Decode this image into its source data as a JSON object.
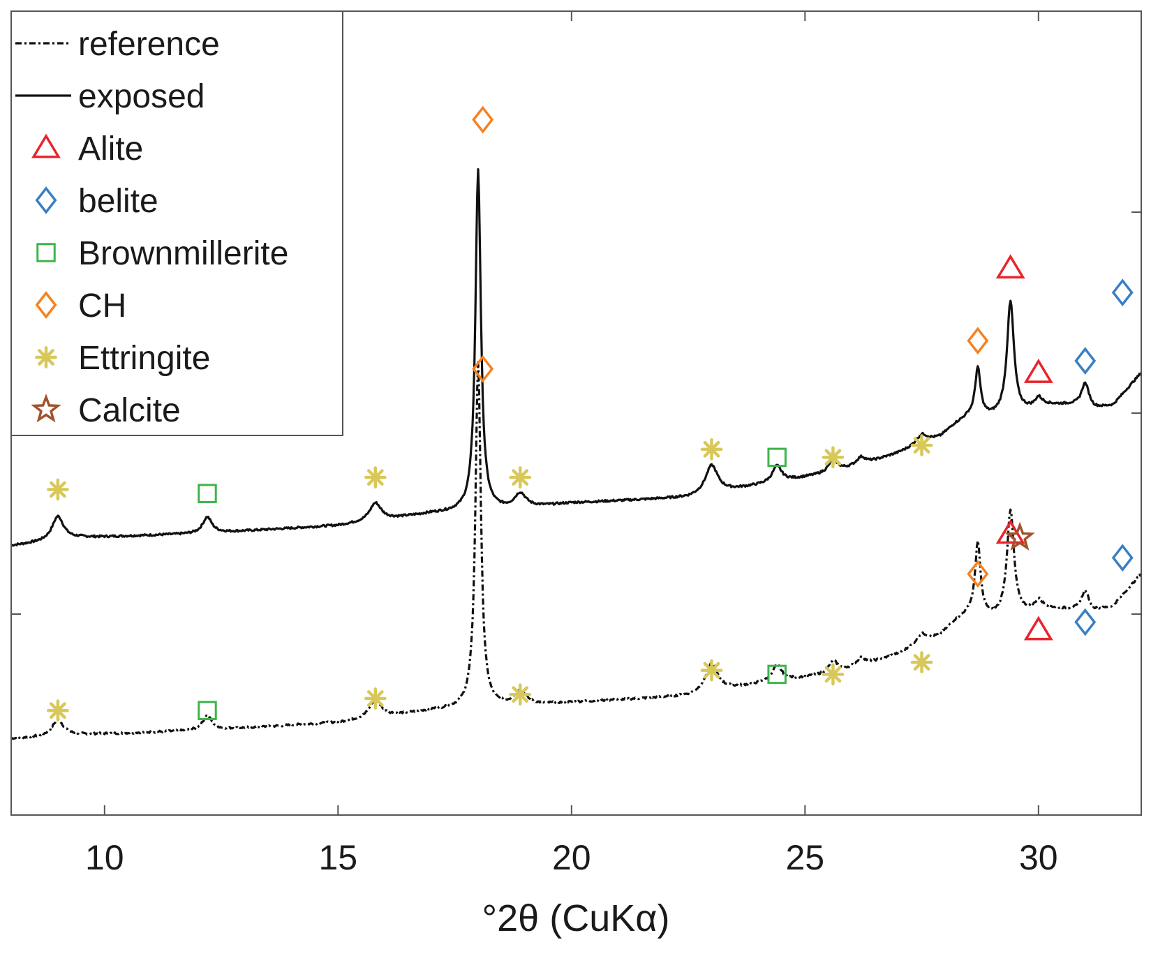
{
  "chart_data": {
    "type": "line",
    "title": "",
    "xlabel": "°2θ (CuKα)",
    "ylabel": "",
    "xlim": [
      8,
      32.2
    ],
    "ylim": [
      0,
      100
    ],
    "xticks": [
      10,
      15,
      20,
      25,
      30
    ],
    "yticks": [
      25,
      50,
      75,
      100
    ],
    "grid": false,
    "legend_position": "top-left",
    "colors": {
      "Alite": "#e8242b",
      "belite": "#3a7fc4",
      "Brownmillerite": "#3cb54a",
      "CH": "#f58220",
      "Ettringite": "#d8c85a",
      "Calcite": "#a0522d",
      "line": "#111111"
    },
    "legend": [
      {
        "label": "reference",
        "kind": "line",
        "style": "dashdot"
      },
      {
        "label": "exposed",
        "kind": "line",
        "style": "solid"
      },
      {
        "label": "Alite",
        "kind": "marker",
        "marker": "triangle"
      },
      {
        "label": "belite",
        "kind": "marker",
        "marker": "diamond"
      },
      {
        "label": "Brownmillerite",
        "kind": "marker",
        "marker": "square"
      },
      {
        "label": "CH",
        "kind": "marker",
        "marker": "diamond"
      },
      {
        "label": "Ettringite",
        "kind": "marker",
        "marker": "asterisk"
      },
      {
        "label": "Calcite",
        "kind": "marker",
        "marker": "star"
      }
    ],
    "series": [
      {
        "name": "exposed",
        "style": "solid",
        "baseline": [
          [
            8,
            33.5
          ],
          [
            9.5,
            34.5
          ],
          [
            12,
            35
          ],
          [
            15,
            36
          ],
          [
            17,
            37.5
          ],
          [
            18.7,
            38
          ],
          [
            20,
            38.8
          ],
          [
            22.5,
            39.5
          ],
          [
            24,
            41
          ],
          [
            25.5,
            42.5
          ],
          [
            26.2,
            43.5
          ],
          [
            27,
            45
          ],
          [
            27.9,
            47
          ],
          [
            28.2,
            48.5
          ],
          [
            28.5,
            49.5
          ],
          [
            29,
            49.5
          ],
          [
            29.6,
            50
          ],
          [
            30.1,
            51
          ],
          [
            30.7,
            51
          ],
          [
            31.2,
            50.5
          ],
          [
            31.6,
            51
          ],
          [
            31.9,
            53
          ],
          [
            32.2,
            55
          ]
        ],
        "peaks": [
          {
            "x": 9.0,
            "h": 3.0,
            "w": 0.15
          },
          {
            "x": 12.2,
            "h": 2.0,
            "w": 0.12
          },
          {
            "x": 15.8,
            "h": 2.2,
            "w": 0.15
          },
          {
            "x": 18.0,
            "h": 42.5,
            "w": 0.07
          },
          {
            "x": 18.9,
            "h": 1.8,
            "w": 0.15
          },
          {
            "x": 23.0,
            "h": 3.5,
            "w": 0.16
          },
          {
            "x": 24.4,
            "h": 2.0,
            "w": 0.12
          },
          {
            "x": 25.6,
            "h": 1.5,
            "w": 0.12
          },
          {
            "x": 26.2,
            "h": 1.0,
            "w": 0.12
          },
          {
            "x": 27.5,
            "h": 1.2,
            "w": 0.15
          },
          {
            "x": 28.7,
            "h": 6.0,
            "w": 0.07
          },
          {
            "x": 29.4,
            "h": 14.0,
            "w": 0.09
          },
          {
            "x": 30.0,
            "h": 1.0,
            "w": 0.08
          },
          {
            "x": 31.0,
            "h": 3.0,
            "w": 0.1
          }
        ]
      },
      {
        "name": "reference",
        "style": "dashdot",
        "baseline": [
          [
            8,
            9.5
          ],
          [
            9.5,
            10
          ],
          [
            12,
            10.5
          ],
          [
            15,
            11.5
          ],
          [
            17,
            13
          ],
          [
            18.7,
            13.5
          ],
          [
            20,
            14
          ],
          [
            22.5,
            14.8
          ],
          [
            24,
            16.3
          ],
          [
            25.5,
            17.5
          ],
          [
            26.2,
            18.5
          ],
          [
            27,
            20
          ],
          [
            27.9,
            22.3
          ],
          [
            28.2,
            24
          ],
          [
            28.5,
            25
          ],
          [
            29,
            24.5
          ],
          [
            29.6,
            25
          ],
          [
            30.1,
            25.8
          ],
          [
            30.7,
            25.5
          ],
          [
            31.2,
            25.3
          ],
          [
            31.6,
            26
          ],
          [
            31.9,
            28
          ],
          [
            32.2,
            30
          ]
        ],
        "peaks": [
          {
            "x": 9.0,
            "h": 2.0,
            "w": 0.15
          },
          {
            "x": 12.2,
            "h": 1.8,
            "w": 0.12
          },
          {
            "x": 15.8,
            "h": 2.2,
            "w": 0.15
          },
          {
            "x": 18.0,
            "h": 43.0,
            "w": 0.07
          },
          {
            "x": 18.9,
            "h": 1.8,
            "w": 0.15
          },
          {
            "x": 23.0,
            "h": 3.5,
            "w": 0.16
          },
          {
            "x": 24.4,
            "h": 2.0,
            "w": 0.12
          },
          {
            "x": 25.6,
            "h": 1.5,
            "w": 0.12
          },
          {
            "x": 26.2,
            "h": 1.0,
            "w": 0.12
          },
          {
            "x": 27.5,
            "h": 1.2,
            "w": 0.15
          },
          {
            "x": 28.7,
            "h": 9.0,
            "w": 0.07
          },
          {
            "x": 29.4,
            "h": 13.0,
            "w": 0.09
          },
          {
            "x": 30.0,
            "h": 1.0,
            "w": 0.08
          },
          {
            "x": 31.0,
            "h": 2.5,
            "w": 0.1
          }
        ]
      }
    ],
    "markers": [
      {
        "phase": "Ettringite",
        "x": 9.0,
        "y": 40.5
      },
      {
        "phase": "Brownmillerite",
        "x": 12.2,
        "y": 40.0
      },
      {
        "phase": "Ettringite",
        "x": 15.8,
        "y": 42.0
      },
      {
        "phase": "CH",
        "x": 18.1,
        "y": 86.5
      },
      {
        "phase": "CH",
        "x": 18.1,
        "y": 55.5
      },
      {
        "phase": "Ettringite",
        "x": 18.9,
        "y": 42.0
      },
      {
        "phase": "Ettringite",
        "x": 23.0,
        "y": 45.5
      },
      {
        "phase": "Brownmillerite",
        "x": 24.4,
        "y": 44.5
      },
      {
        "phase": "Ettringite",
        "x": 25.6,
        "y": 44.5
      },
      {
        "phase": "Ettringite",
        "x": 27.5,
        "y": 46.0
      },
      {
        "phase": "CH",
        "x": 28.7,
        "y": 59.0
      },
      {
        "phase": "Alite",
        "x": 29.4,
        "y": 68.0
      },
      {
        "phase": "Alite",
        "x": 30.0,
        "y": 55.0
      },
      {
        "phase": "belite",
        "x": 31.0,
        "y": 56.5
      },
      {
        "phase": "belite",
        "x": 31.8,
        "y": 65.0
      },
      {
        "phase": "Ettringite",
        "x": 9.0,
        "y": 13.0
      },
      {
        "phase": "Brownmillerite",
        "x": 12.2,
        "y": 13.0
      },
      {
        "phase": "Ettringite",
        "x": 15.8,
        "y": 14.5
      },
      {
        "phase": "Ettringite",
        "x": 18.9,
        "y": 15.0
      },
      {
        "phase": "Ettringite",
        "x": 23.0,
        "y": 18.0
      },
      {
        "phase": "Brownmillerite",
        "x": 24.4,
        "y": 17.5
      },
      {
        "phase": "Ettringite",
        "x": 25.6,
        "y": 17.5
      },
      {
        "phase": "Ettringite",
        "x": 27.5,
        "y": 19.0
      },
      {
        "phase": "CH",
        "x": 28.7,
        "y": 30.0
      },
      {
        "phase": "Alite",
        "x": 29.4,
        "y": 35.0
      },
      {
        "phase": "Calcite",
        "x": 29.6,
        "y": 34.5
      },
      {
        "phase": "Alite",
        "x": 30.0,
        "y": 23.0
      },
      {
        "phase": "belite",
        "x": 31.0,
        "y": 24.0
      },
      {
        "phase": "belite",
        "x": 31.8,
        "y": 32.0
      }
    ]
  }
}
